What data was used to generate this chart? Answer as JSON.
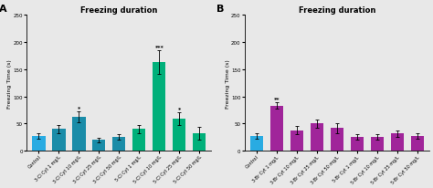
{
  "panel_A": {
    "title": "Freezing duration",
    "label": "A",
    "categories": [
      "Control",
      "3-Cl Cyt 1 mg/L",
      "3-Cl Cyt 10 mg/L",
      "3-Cl Cyt 25 mg/L",
      "3-Cl Cyt 50 mg/L",
      "5-Cl Cyt 1 mg/L",
      "5-Cl Cyt 10 mg/L",
      "5-Cl Cyt 25 mg/L",
      "5-Cl Cyt 50 mg/L"
    ],
    "values": [
      28,
      40,
      63,
      20,
      25,
      40,
      163,
      59,
      32
    ],
    "errors": [
      5,
      8,
      10,
      4,
      5,
      7,
      22,
      12,
      12
    ],
    "colors": [
      "#29ABE2",
      "#1A8CA8",
      "#1A8CA8",
      "#1A8CA8",
      "#1A8CA8",
      "#00B07A",
      "#00B07A",
      "#00B07A",
      "#00B07A"
    ],
    "annotations": [
      "",
      "",
      "*",
      "",
      "",
      "",
      "***",
      "*",
      ""
    ],
    "ylabel": "Freezing Time (s)",
    "ylim": [
      0,
      250
    ],
    "yticks": [
      0,
      50,
      100,
      150,
      200,
      250
    ]
  },
  "panel_B": {
    "title": "Freezing duration",
    "label": "B",
    "categories": [
      "Control",
      "3-Br Cyt 1 mg/L",
      "3-Br Cyt 10 mg/L",
      "3-Br Cyt 25 mg/L",
      "3-Br Cyt 50 mg/L",
      "5-Br Cyt 1 mg/L",
      "5-Br Cyt 10 mg/L",
      "5-Br Cyt 25 mg/L",
      "5-Br Cyt 50 mg/L"
    ],
    "values": [
      28,
      83,
      38,
      50,
      42,
      25,
      25,
      32,
      28
    ],
    "errors": [
      5,
      6,
      7,
      8,
      9,
      5,
      5,
      6,
      5
    ],
    "colors": [
      "#29ABE2",
      "#A0259A",
      "#A0259A",
      "#A0259A",
      "#A0259A",
      "#A0259A",
      "#A0259A",
      "#A0259A",
      "#A0259A"
    ],
    "annotations": [
      "",
      "**",
      "",
      "",
      "",
      "",
      "",
      "",
      ""
    ],
    "ylabel": "Freezing Time (s)",
    "ylim": [
      0,
      250
    ],
    "yticks": [
      0,
      50,
      100,
      150,
      200,
      250
    ]
  },
  "fig_bg": "#E8E8E8",
  "axes_bg": "#E8E8E8"
}
